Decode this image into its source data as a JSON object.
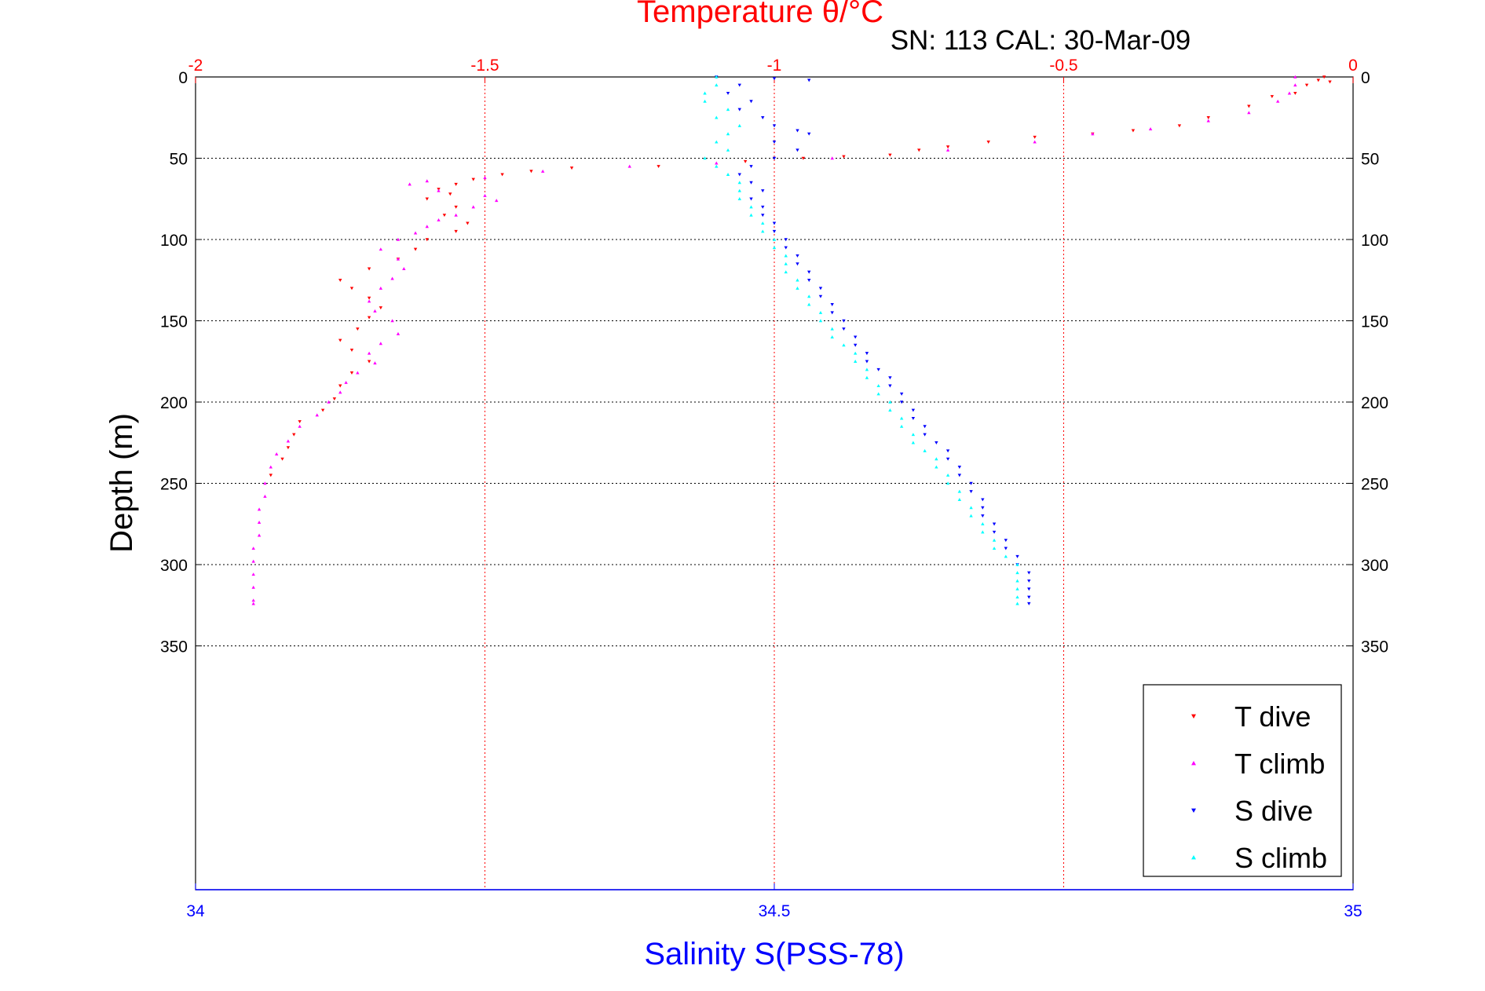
{
  "chart_data": {
    "type": "scatter",
    "title": "Temperature θ/°C",
    "subtitle": "SN: 113  CAL: 30-Mar-09",
    "xlabel": "Salinity S(PSS-78)",
    "ylabel": "Depth (m)",
    "y_axis": {
      "range": [
        0,
        500
      ],
      "reversed": true,
      "ticks": [
        0,
        50,
        100,
        150,
        200,
        250,
        300,
        350
      ]
    },
    "x_axis_top": {
      "label": "Temperature θ/°C",
      "range": [
        -2,
        0
      ],
      "ticks": [
        -2,
        -1.5,
        -1,
        -0.5,
        0
      ],
      "tick_labels": [
        "-2",
        "-1.5",
        "-1",
        "-0.5",
        "0"
      ]
    },
    "x_axis_bottom": {
      "label": "Salinity S(PSS-78)",
      "range": [
        34,
        35
      ],
      "ticks": [
        34,
        34.5,
        35
      ],
      "tick_labels": [
        "34",
        "34.5",
        "35"
      ]
    },
    "grid": true,
    "legend_position": "bottom-right",
    "colors": {
      "temperature_axis": "#ff0000",
      "salinity_axis": "#0000ff",
      "grid": "#000000"
    },
    "series": [
      {
        "name": "T dive",
        "axis": "temperature",
        "marker": "triangle-down",
        "color": "#ff0000",
        "points": [
          [
            -0.05,
            0
          ],
          [
            -0.06,
            2
          ],
          [
            -0.04,
            3
          ],
          [
            -0.08,
            5
          ],
          [
            -0.1,
            10
          ],
          [
            -0.14,
            12
          ],
          [
            -0.18,
            18
          ],
          [
            -0.25,
            25
          ],
          [
            -0.3,
            30
          ],
          [
            -0.38,
            33
          ],
          [
            -0.45,
            35
          ],
          [
            -0.55,
            37
          ],
          [
            -0.63,
            40
          ],
          [
            -0.7,
            43
          ],
          [
            -0.75,
            45
          ],
          [
            -0.8,
            48
          ],
          [
            -0.88,
            49
          ],
          [
            -0.95,
            50
          ],
          [
            -1.05,
            52
          ],
          [
            -1.2,
            55
          ],
          [
            -1.35,
            56
          ],
          [
            -1.42,
            58
          ],
          [
            -1.47,
            60
          ],
          [
            -1.52,
            63
          ],
          [
            -1.55,
            66
          ],
          [
            -1.58,
            69
          ],
          [
            -1.56,
            72
          ],
          [
            -1.6,
            75
          ],
          [
            -1.55,
            80
          ],
          [
            -1.57,
            85
          ],
          [
            -1.53,
            90
          ],
          [
            -1.55,
            95
          ],
          [
            -1.6,
            100
          ],
          [
            -1.62,
            106
          ],
          [
            -1.65,
            112
          ],
          [
            -1.7,
            118
          ],
          [
            -1.75,
            125
          ],
          [
            -1.73,
            130
          ],
          [
            -1.7,
            136
          ],
          [
            -1.68,
            142
          ],
          [
            -1.7,
            148
          ],
          [
            -1.72,
            155
          ],
          [
            -1.75,
            162
          ],
          [
            -1.73,
            168
          ],
          [
            -1.7,
            175
          ],
          [
            -1.73,
            182
          ],
          [
            -1.75,
            190
          ],
          [
            -1.76,
            198
          ],
          [
            -1.78,
            205
          ],
          [
            -1.82,
            212
          ],
          [
            -1.83,
            220
          ],
          [
            -1.84,
            228
          ],
          [
            -1.85,
            235
          ],
          [
            -1.87,
            245
          ]
        ]
      },
      {
        "name": "T climb",
        "axis": "temperature",
        "marker": "triangle-up",
        "color": "#ff00ff",
        "points": [
          [
            -0.1,
            0
          ],
          [
            -0.1,
            5
          ],
          [
            -0.11,
            10
          ],
          [
            -0.13,
            15
          ],
          [
            -0.18,
            22
          ],
          [
            -0.25,
            27
          ],
          [
            -0.35,
            32
          ],
          [
            -0.45,
            35
          ],
          [
            -0.55,
            40
          ],
          [
            -0.7,
            45
          ],
          [
            -0.9,
            50
          ],
          [
            -1.1,
            53
          ],
          [
            -1.25,
            55
          ],
          [
            -1.4,
            58
          ],
          [
            -1.5,
            62
          ],
          [
            -1.6,
            64
          ],
          [
            -1.63,
            66
          ],
          [
            -1.58,
            70
          ],
          [
            -1.5,
            73
          ],
          [
            -1.48,
            76
          ],
          [
            -1.52,
            80
          ],
          [
            -1.55,
            85
          ],
          [
            -1.58,
            88
          ],
          [
            -1.6,
            92
          ],
          [
            -1.62,
            96
          ],
          [
            -1.65,
            100
          ],
          [
            -1.68,
            106
          ],
          [
            -1.65,
            112
          ],
          [
            -1.64,
            118
          ],
          [
            -1.66,
            124
          ],
          [
            -1.68,
            130
          ],
          [
            -1.7,
            138
          ],
          [
            -1.69,
            144
          ],
          [
            -1.66,
            150
          ],
          [
            -1.65,
            158
          ],
          [
            -1.68,
            164
          ],
          [
            -1.7,
            170
          ],
          [
            -1.69,
            176
          ],
          [
            -1.72,
            182
          ],
          [
            -1.74,
            188
          ],
          [
            -1.75,
            194
          ],
          [
            -1.77,
            200
          ],
          [
            -1.79,
            208
          ],
          [
            -1.82,
            215
          ],
          [
            -1.84,
            224
          ],
          [
            -1.86,
            232
          ],
          [
            -1.87,
            240
          ],
          [
            -1.88,
            250
          ],
          [
            -1.88,
            258
          ],
          [
            -1.89,
            266
          ],
          [
            -1.89,
            274
          ],
          [
            -1.89,
            282
          ],
          [
            -1.9,
            290
          ],
          [
            -1.9,
            298
          ],
          [
            -1.9,
            306
          ],
          [
            -1.9,
            314
          ],
          [
            -1.9,
            322
          ],
          [
            -1.9,
            324
          ]
        ]
      },
      {
        "name": "S dive",
        "axis": "salinity",
        "marker": "triangle-down",
        "color": "#0000ff",
        "points": [
          [
            34.45,
            0
          ],
          [
            34.5,
            1
          ],
          [
            34.53,
            2
          ],
          [
            34.47,
            5
          ],
          [
            34.46,
            10
          ],
          [
            34.48,
            15
          ],
          [
            34.47,
            20
          ],
          [
            34.49,
            25
          ],
          [
            34.5,
            30
          ],
          [
            34.52,
            33
          ],
          [
            34.53,
            35
          ],
          [
            34.5,
            40
          ],
          [
            34.52,
            45
          ],
          [
            34.5,
            50
          ],
          [
            34.48,
            55
          ],
          [
            34.47,
            60
          ],
          [
            34.48,
            65
          ],
          [
            34.49,
            70
          ],
          [
            34.48,
            75
          ],
          [
            34.49,
            80
          ],
          [
            34.49,
            85
          ],
          [
            34.5,
            90
          ],
          [
            34.5,
            95
          ],
          [
            34.51,
            100
          ],
          [
            34.51,
            105
          ],
          [
            34.52,
            110
          ],
          [
            34.52,
            115
          ],
          [
            34.53,
            120
          ],
          [
            34.53,
            125
          ],
          [
            34.54,
            130
          ],
          [
            34.54,
            135
          ],
          [
            34.55,
            140
          ],
          [
            34.55,
            145
          ],
          [
            34.56,
            150
          ],
          [
            34.56,
            155
          ],
          [
            34.57,
            160
          ],
          [
            34.57,
            165
          ],
          [
            34.58,
            170
          ],
          [
            34.58,
            175
          ],
          [
            34.59,
            180
          ],
          [
            34.6,
            185
          ],
          [
            34.6,
            190
          ],
          [
            34.61,
            195
          ],
          [
            34.61,
            200
          ],
          [
            34.62,
            205
          ],
          [
            34.62,
            210
          ],
          [
            34.63,
            215
          ],
          [
            34.63,
            220
          ],
          [
            34.64,
            225
          ],
          [
            34.65,
            230
          ],
          [
            34.65,
            235
          ],
          [
            34.66,
            240
          ],
          [
            34.66,
            245
          ],
          [
            34.67,
            250
          ],
          [
            34.67,
            255
          ],
          [
            34.68,
            260
          ],
          [
            34.68,
            265
          ],
          [
            34.68,
            270
          ],
          [
            34.69,
            275
          ],
          [
            34.69,
            280
          ],
          [
            34.7,
            285
          ],
          [
            34.7,
            290
          ],
          [
            34.71,
            295
          ],
          [
            34.71,
            300
          ],
          [
            34.72,
            305
          ],
          [
            34.72,
            310
          ],
          [
            34.72,
            315
          ],
          [
            34.72,
            320
          ],
          [
            34.72,
            324
          ]
        ]
      },
      {
        "name": "S climb",
        "axis": "salinity",
        "marker": "triangle-up",
        "color": "#00ffff",
        "points": [
          [
            34.45,
            0
          ],
          [
            34.45,
            5
          ],
          [
            34.44,
            10
          ],
          [
            34.44,
            15
          ],
          [
            34.46,
            20
          ],
          [
            34.45,
            25
          ],
          [
            34.47,
            30
          ],
          [
            34.46,
            35
          ],
          [
            34.45,
            40
          ],
          [
            34.46,
            45
          ],
          [
            34.44,
            50
          ],
          [
            34.45,
            55
          ],
          [
            34.46,
            60
          ],
          [
            34.47,
            65
          ],
          [
            34.47,
            70
          ],
          [
            34.47,
            75
          ],
          [
            34.48,
            80
          ],
          [
            34.48,
            85
          ],
          [
            34.49,
            90
          ],
          [
            34.49,
            95
          ],
          [
            34.5,
            100
          ],
          [
            34.5,
            105
          ],
          [
            34.51,
            110
          ],
          [
            34.51,
            115
          ],
          [
            34.51,
            120
          ],
          [
            34.52,
            125
          ],
          [
            34.52,
            130
          ],
          [
            34.53,
            135
          ],
          [
            34.53,
            140
          ],
          [
            34.54,
            145
          ],
          [
            34.54,
            150
          ],
          [
            34.55,
            155
          ],
          [
            34.55,
            160
          ],
          [
            34.56,
            165
          ],
          [
            34.57,
            170
          ],
          [
            34.57,
            175
          ],
          [
            34.58,
            180
          ],
          [
            34.58,
            185
          ],
          [
            34.59,
            190
          ],
          [
            34.59,
            195
          ],
          [
            34.6,
            200
          ],
          [
            34.6,
            205
          ],
          [
            34.61,
            210
          ],
          [
            34.61,
            215
          ],
          [
            34.62,
            220
          ],
          [
            34.62,
            225
          ],
          [
            34.63,
            230
          ],
          [
            34.64,
            235
          ],
          [
            34.64,
            240
          ],
          [
            34.65,
            245
          ],
          [
            34.65,
            250
          ],
          [
            34.66,
            255
          ],
          [
            34.66,
            260
          ],
          [
            34.67,
            265
          ],
          [
            34.67,
            270
          ],
          [
            34.68,
            275
          ],
          [
            34.68,
            280
          ],
          [
            34.69,
            285
          ],
          [
            34.69,
            290
          ],
          [
            34.7,
            295
          ],
          [
            34.71,
            300
          ],
          [
            34.71,
            305
          ],
          [
            34.71,
            310
          ],
          [
            34.71,
            315
          ],
          [
            34.71,
            320
          ],
          [
            34.71,
            324
          ]
        ]
      }
    ]
  }
}
